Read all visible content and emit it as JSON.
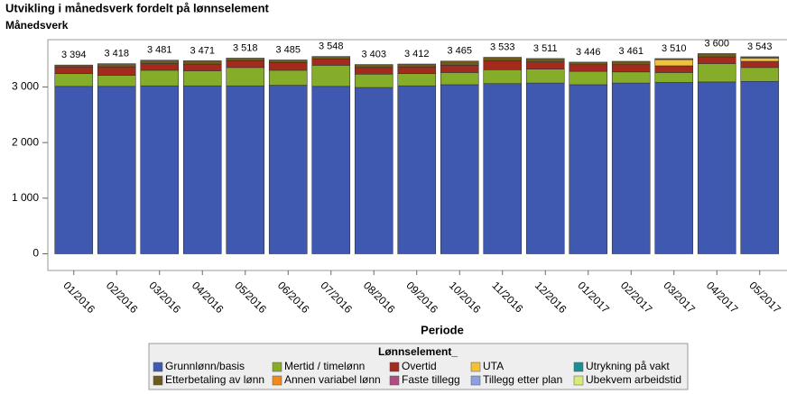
{
  "chart_data": {
    "type": "stacked_bar",
    "title": "Utvikling i månedsverk fordelt på lønnselement",
    "y_label": "Månedsverk",
    "x_label": "Periode",
    "legend_title": "Lønnselement_",
    "categories": [
      "01/2016",
      "02/2016",
      "03/2016",
      "04/2016",
      "05/2016",
      "06/2016",
      "07/2016",
      "08/2016",
      "09/2016",
      "10/2016",
      "11/2016",
      "12/2016",
      "01/2017",
      "02/2017",
      "03/2017",
      "04/2017",
      "05/2017"
    ],
    "series": [
      {
        "name": "Grunnlønn/basis",
        "color": "#3f59b0",
        "values": [
          3010,
          3010,
          3020,
          3020,
          3020,
          3030,
          3010,
          2990,
          3020,
          3040,
          3060,
          3070,
          3040,
          3070,
          3080,
          3090,
          3100
        ]
      },
      {
        "name": "Mertid / timelønn",
        "color": "#86ad2a",
        "values": [
          230,
          200,
          280,
          270,
          330,
          270,
          380,
          240,
          220,
          220,
          250,
          250,
          240,
          200,
          180,
          330,
          250
        ]
      },
      {
        "name": "Overtid",
        "color": "#a22b1e",
        "values": [
          120,
          150,
          120,
          120,
          120,
          140,
          110,
          120,
          120,
          130,
          160,
          130,
          120,
          130,
          120,
          120,
          110
        ]
      },
      {
        "name": "UTA",
        "color": "#f3c23a",
        "values": [
          0,
          0,
          0,
          0,
          0,
          0,
          0,
          0,
          0,
          0,
          0,
          0,
          0,
          0,
          110,
          0,
          60
        ]
      },
      {
        "name": "Utrykning på vakt",
        "color": "#1c8f95",
        "values": [
          0,
          0,
          0,
          0,
          0,
          0,
          0,
          0,
          0,
          0,
          0,
          0,
          0,
          0,
          0,
          0,
          0
        ]
      },
      {
        "name": "Etterbetaling av lønn",
        "color": "#6d5a1e",
        "values": [
          34,
          58,
          61,
          61,
          48,
          45,
          48,
          53,
          52,
          75,
          63,
          61,
          46,
          61,
          20,
          60,
          23
        ]
      },
      {
        "name": "Annen variabel lønn",
        "color": "#f08a1c",
        "values": [
          0,
          0,
          0,
          0,
          0,
          0,
          0,
          0,
          0,
          0,
          0,
          0,
          0,
          0,
          0,
          0,
          0
        ]
      },
      {
        "name": "Faste tillegg",
        "color": "#b04a82",
        "values": [
          0,
          0,
          0,
          0,
          0,
          0,
          0,
          0,
          0,
          0,
          0,
          0,
          0,
          0,
          0,
          0,
          0
        ]
      },
      {
        "name": "Tillegg etter plan",
        "color": "#8c9fe0",
        "values": [
          0,
          0,
          0,
          0,
          0,
          0,
          0,
          0,
          0,
          0,
          0,
          0,
          0,
          0,
          0,
          0,
          0
        ]
      },
      {
        "name": "Ubekvem arbeidstid",
        "color": "#d9ea7a",
        "values": [
          0,
          0,
          0,
          0,
          0,
          0,
          0,
          0,
          0,
          0,
          0,
          0,
          0,
          0,
          0,
          0,
          0
        ]
      }
    ],
    "totals": [
      3394,
      3418,
      3481,
      3471,
      3518,
      3485,
      3548,
      3403,
      3412,
      3465,
      3533,
      3511,
      3446,
      3461,
      3510,
      3600,
      3543
    ],
    "total_labels": [
      "3 394",
      "3 418",
      "3 481",
      "3 471",
      "3 518",
      "3 485",
      "3 548",
      "3 403",
      "3 412",
      "3 465",
      "3 533",
      "3 511",
      "3 446",
      "3 461",
      "3 510",
      "3 600",
      "3 543"
    ],
    "ylim": [
      -300,
      3850
    ],
    "yticks": [
      0,
      {
        "value": 1000,
        "label": "1 000"
      },
      {
        "value": 2000,
        "label": "2 000"
      },
      {
        "value": 3000,
        "label": "3 000"
      }
    ]
  }
}
